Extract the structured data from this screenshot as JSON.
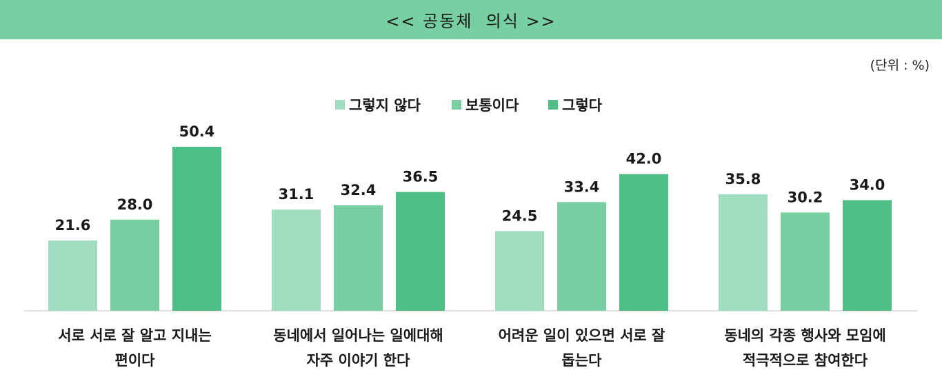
{
  "header": {
    "title": "<< 공동체  의식 >>"
  },
  "unit_label": "(단위 : %)",
  "colors": {
    "banner": "#78cfa2",
    "series": [
      "#a0dcc0",
      "#78cfa2",
      "#4cbe86"
    ],
    "baseline": "#bfbfbf"
  },
  "chart_data": {
    "type": "bar",
    "title": "",
    "xlabel": "",
    "ylabel": "",
    "ylim": [
      0,
      55
    ],
    "grid": false,
    "legend_position": "top-center",
    "categories": [
      [
        "서로 서로 잘 알고 지내는",
        "편이다"
      ],
      [
        "동네에서 일어나는 일에대해",
        "자주 이야기 한다"
      ],
      [
        "어려운 일이 있으면 서로 잘",
        "돕는다"
      ],
      [
        "동네의 각종 행사와 모임에",
        "적극적으로 참여한다"
      ]
    ],
    "series": [
      {
        "name": "그렇지 않다",
        "values": [
          21.6,
          31.1,
          24.5,
          35.8
        ]
      },
      {
        "name": "보통이다",
        "values": [
          28.0,
          32.4,
          33.4,
          30.2
        ]
      },
      {
        "name": "그렇다",
        "values": [
          50.4,
          36.5,
          42.0,
          34.0
        ]
      }
    ]
  }
}
